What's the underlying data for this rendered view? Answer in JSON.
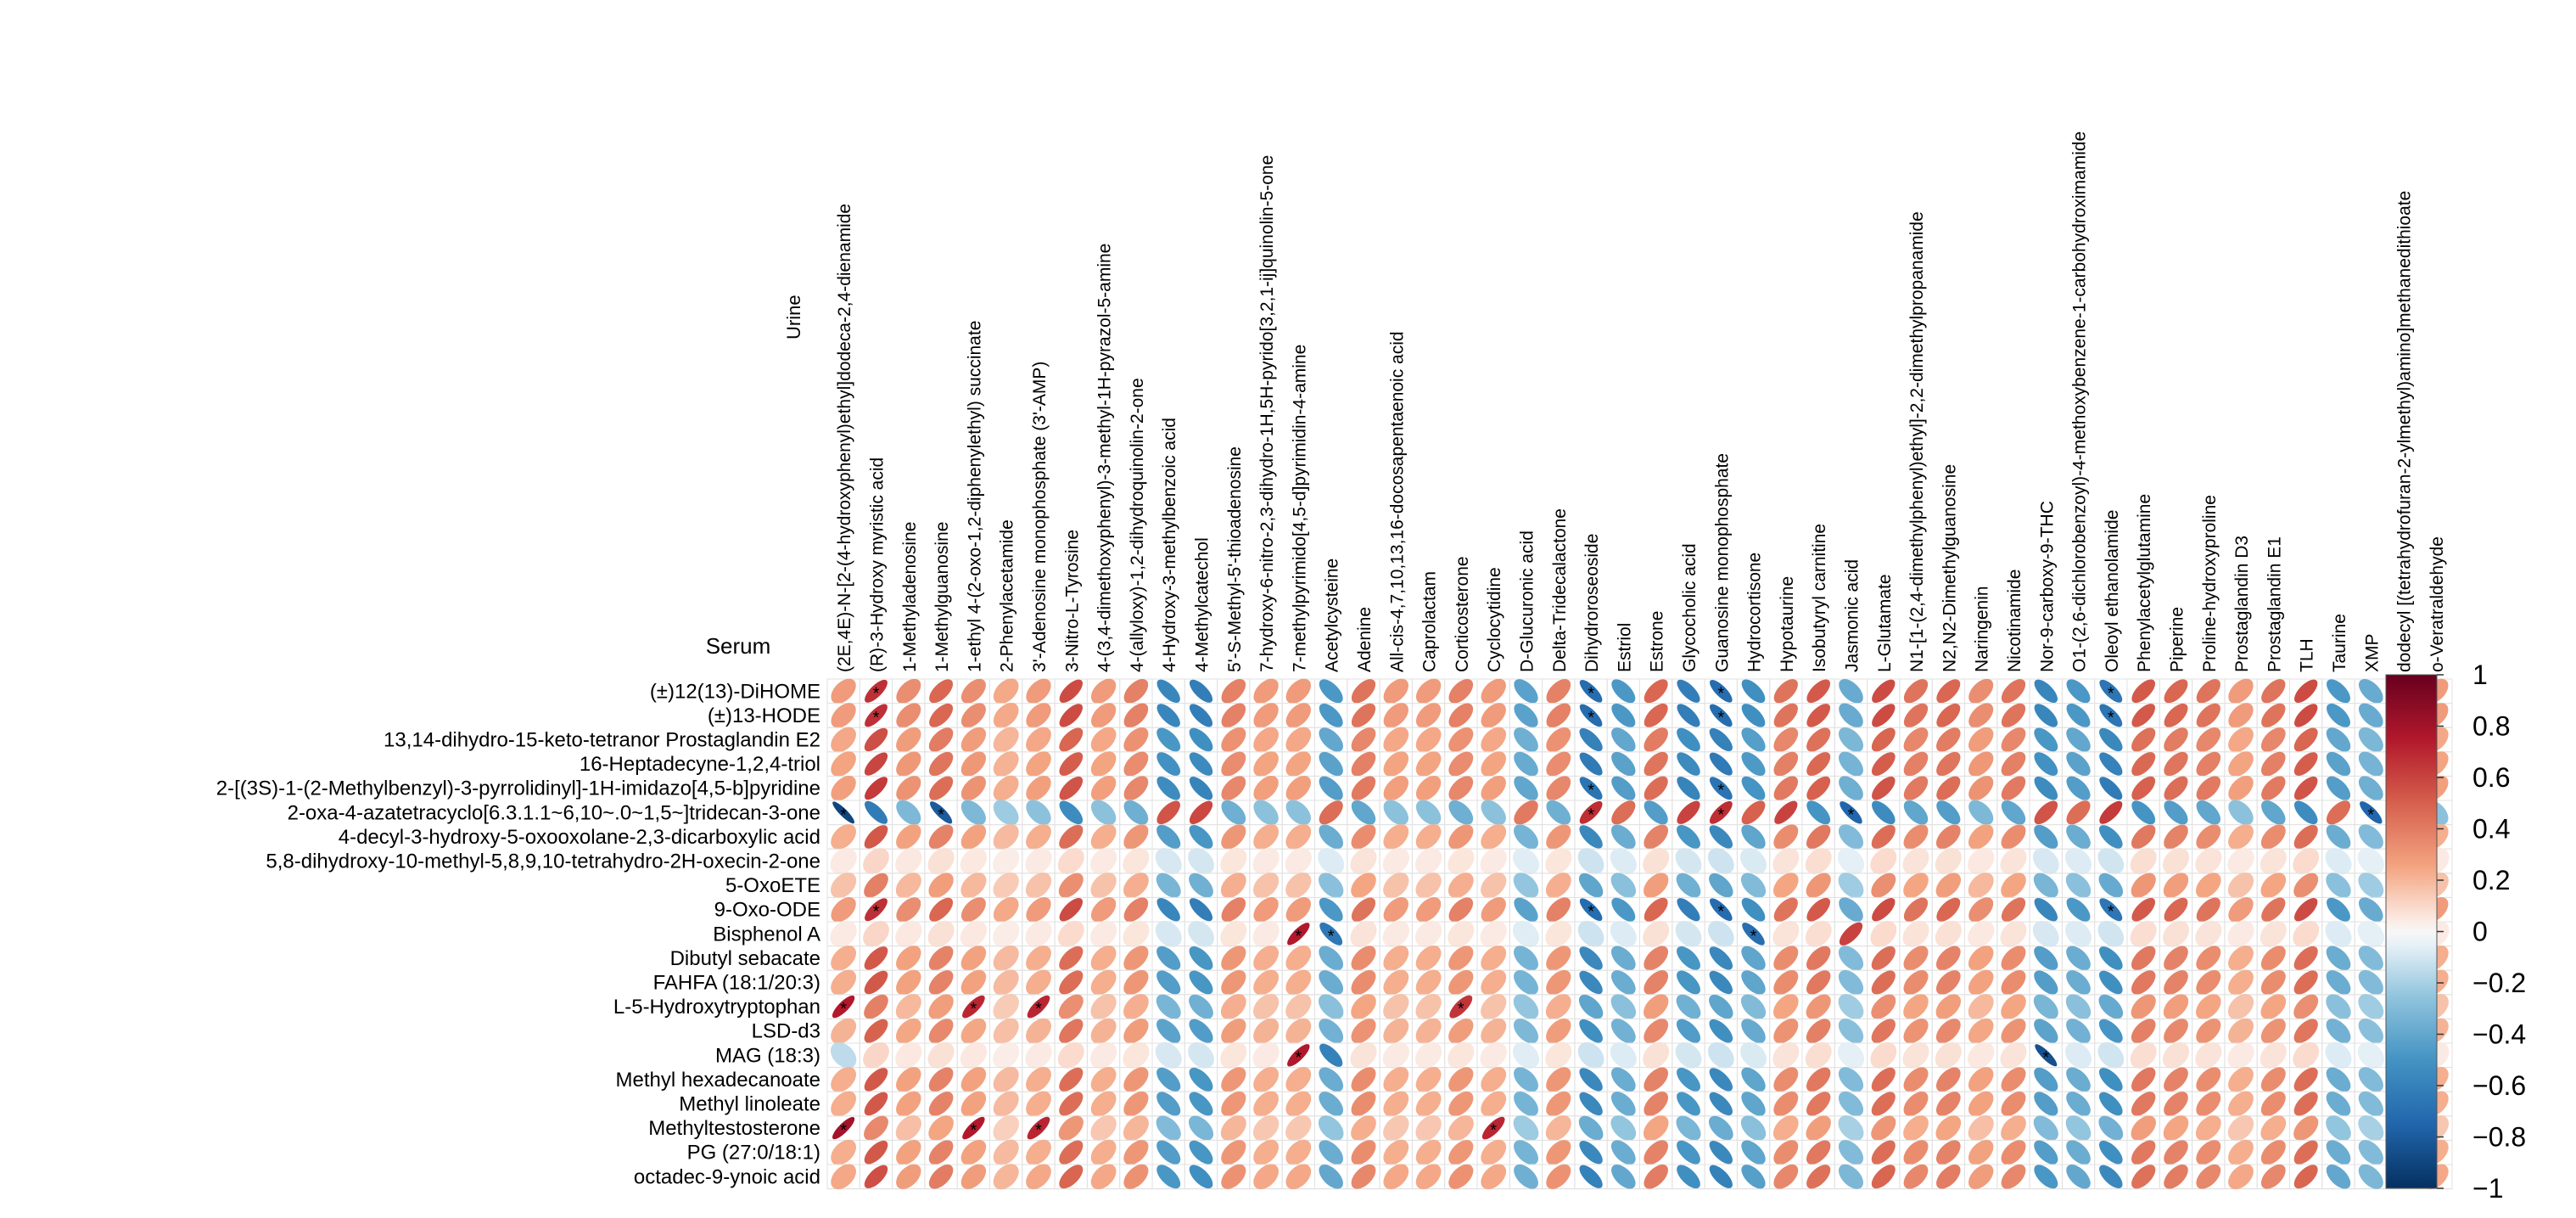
{
  "chart_data": {
    "type": "heatmap",
    "subtype": "correlation-ellipse",
    "corner_labels": {
      "columns_group": "Urine",
      "rows_group": "Serum"
    },
    "columns": [
      "(2E,4E)-N-[2-(4-hydroxyphenyl)ethyl]dodeca-2,4-dienamide",
      "(R)-3-Hydroxy myristic acid",
      "1-Methyladenosine",
      "1-Methylguanosine",
      "1-ethyl 4-(2-oxo-1,2-diphenylethyl) succinate",
      "2-Phenylacetamide",
      "3'-Adenosine monophosphate (3'-AMP)",
      "3-Nitro-L-Tyrosine",
      "4-(3,4-dimethoxyphenyl)-3-methyl-1H-pyrazol-5-amine",
      "4-(allyloxy)-1,2-dihydroquinolin-2-one",
      "4-Hydroxy-3-methylbenzoic acid",
      "4-Methylcatechol",
      "5'-S-Methyl-5'-thioadenosine",
      "7-hydroxy-6-nitro-2,3-dihydro-1H,5H-pyrido[3,2,1-ij]quinolin-5-one",
      "7-methylpyrimido[4,5-d]pyrimidin-4-amine",
      "Acetylcysteine",
      "Adenine",
      "All-cis-4,7,10,13,16-docosapentaenoic acid",
      "Caprolactam",
      "Corticosterone",
      "Cyclocytidine",
      "D-Glucuronic acid",
      "Delta-Tridecalactone",
      "Dihydroroseoside",
      "Estriol",
      "Estrone",
      "Glycocholic acid",
      "Guanosine monophosphate",
      "Hydrocortisone",
      "Hypotaurine",
      "Isobutyryl carnitine",
      "Jasmonic acid",
      "L-Glutamate",
      "N1-[1-(2,4-dimethylphenyl)ethyl]-2,2-dimethylpropanamide",
      "N2,N2-Dimethylguanosine",
      "Naringenin",
      "Nicotinamide",
      "Nor-9-carboxy-9-THC",
      "O1-(2,6-dichlorobenzoyl)-4-methoxybenzene-1-carbohydroximamide",
      "Oleoyl ethanolamide",
      "Phenylacetylglutamine",
      "Piperine",
      "Proline-hydroxyproline",
      "Prostaglandin D3",
      "Prostaglandin E1",
      "TLH",
      "Taurine",
      "XMP",
      "dodecyl [(tetrahydrofuran-2-ylmethyl)amino]methanedithioate",
      "o-Veratraldehyde"
    ],
    "rows": [
      "(±)12(13)-DiHOME",
      "(±)13-HODE",
      "13,14-dihydro-15-keto-tetranor Prostaglandin E2",
      "16-Heptadecyne-1,2,4-triol",
      "2-[(3S)-1-(2-Methylbenzyl)-3-pyrrolidinyl]-1H-imidazo[4,5-b]pyridine",
      "2-oxa-4-azatetracyclo[6.3.1.1~6,10~.0~1,5~]tridecan-3-one",
      "4-decyl-3-hydroxy-5-oxooxolane-2,3-dicarboxylic acid",
      "5,8-dihydroxy-10-methyl-5,8,9,10-tetrahydro-2H-oxecin-2-one",
      "5-OxoETE",
      "9-Oxo-ODE",
      "Bisphenol A",
      "Dibutyl sebacate",
      "FAHFA (18:1/20:3)",
      "L-5-Hydroxytryptophan",
      "LSD-d3",
      "MAG (18:3)",
      "Methyl hexadecanoate",
      "Methyl linoleate",
      "Methyltestosterone",
      "PG (27:0/18:1)",
      "octadec-9-ynoic acid"
    ],
    "column_profile": [
      0.3,
      0.7,
      0.35,
      0.5,
      0.35,
      0.25,
      0.3,
      0.6,
      0.3,
      0.4,
      -0.6,
      -0.65,
      0.4,
      0.3,
      0.3,
      -0.5,
      0.45,
      0.3,
      0.3,
      0.4,
      0.3,
      -0.45,
      0.4,
      -0.75,
      -0.5,
      0.5,
      -0.65,
      -0.75,
      -0.55,
      0.45,
      0.55,
      -0.4,
      0.6,
      0.45,
      0.5,
      0.35,
      0.45,
      -0.6,
      -0.5,
      -0.7,
      0.55,
      0.5,
      0.45,
      0.3,
      0.45,
      0.6,
      -0.5,
      -0.4,
      0.55,
      0.3
    ],
    "row_strength": [
      0.95,
      0.95,
      0.8,
      0.85,
      0.9,
      -0.9,
      0.75,
      0.15,
      0.55,
      0.95,
      0.15,
      0.75,
      0.75,
      0.55,
      0.7,
      0.15,
      0.75,
      0.75,
      0.5,
      0.75,
      0.8
    ],
    "row_overrides": {
      "Bisphenol A": {
        "14": 0.75,
        "15": -0.65,
        "28": -0.7,
        "31": 0.6
      },
      "MAG (18:3)": {
        "0": -0.15,
        "14": 0.75,
        "15": -0.6,
        "37": -0.85
      },
      "L-5-Hydroxytryptophan": {
        "0": 0.75,
        "4": 0.7,
        "6": 0.7,
        "19": 0.65
      },
      "Methyltestosterone": {
        "0": 0.8,
        "4": 0.75,
        "6": 0.7,
        "20": 0.7
      },
      "2-oxa-4-azatetracyclo[6.3.1.1~6,10~.0~1,5~]tridecan-3-one": {
        "0": -0.9,
        "3": -0.8,
        "26": 0.6,
        "29": 0.6,
        "31": -0.75,
        "47": -0.75
      }
    },
    "significance_threshold": 0.65,
    "significance_marker": "*",
    "color_scale": {
      "min": -1,
      "max": 1,
      "ticks": [
        "1",
        "0.8",
        "0.6",
        "0.4",
        "0.2",
        "0",
        "−0.2",
        "−0.4",
        "−0.6",
        "−0.8",
        "−1"
      ],
      "negative_color": "#053061",
      "zero_color": "#f7f7f7",
      "positive_color": "#67001f",
      "stops": [
        {
          "v": -1.0,
          "c": "#053061"
        },
        {
          "v": -0.75,
          "c": "#2166ac"
        },
        {
          "v": -0.5,
          "c": "#4393c3"
        },
        {
          "v": -0.25,
          "c": "#92c5de"
        },
        {
          "v": -0.05,
          "c": "#e8f1f7"
        },
        {
          "v": 0.0,
          "c": "#f7f7f7"
        },
        {
          "v": 0.05,
          "c": "#fbe9e1"
        },
        {
          "v": 0.25,
          "c": "#f4a582"
        },
        {
          "v": 0.5,
          "c": "#d6604d"
        },
        {
          "v": 0.75,
          "c": "#b2182b"
        },
        {
          "v": 1.0,
          "c": "#67001f"
        }
      ]
    }
  }
}
